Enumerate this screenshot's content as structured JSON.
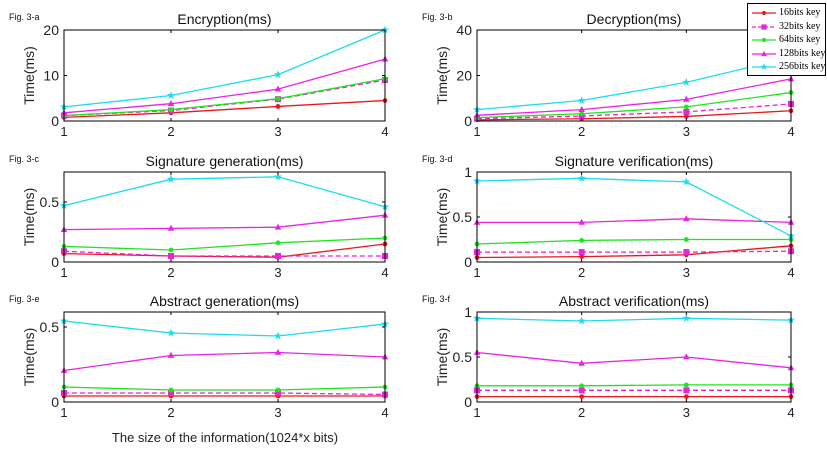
{
  "figure": {
    "xlabel": "The size of the information(1024*x bits)"
  },
  "legend": {
    "items": [
      {
        "label": "16bits key",
        "color": "#e8191c",
        "marker": "dot",
        "dashed": false
      },
      {
        "label": "32bits key",
        "color": "#e824d7",
        "marker": "square",
        "dashed": true
      },
      {
        "label": "64bits key",
        "color": "#1fe41f",
        "marker": "dot",
        "dashed": false
      },
      {
        "label": "128bits key",
        "color": "#e824e3",
        "marker": "triangle",
        "dashed": false
      },
      {
        "label": "256bits key",
        "color": "#1ddcf0",
        "marker": "star",
        "dashed": false
      }
    ]
  },
  "chart_data": [
    {
      "type": "line",
      "figure_label": "Fig. 3-a",
      "title": "Encryption(ms)",
      "ylabel": "Time(ms)",
      "xlabel": "",
      "x": [
        1,
        2,
        3,
        4
      ],
      "ylim": [
        0,
        20
      ],
      "yticks": [
        0,
        10,
        20
      ],
      "grid": false,
      "series": [
        {
          "name": "16bits key",
          "values": [
            0.8,
            1.8,
            3.2,
            4.5
          ]
        },
        {
          "name": "32bits key",
          "values": [
            1.2,
            2.3,
            4.8,
            9.0
          ]
        },
        {
          "name": "64bits key",
          "values": [
            1.2,
            2.5,
            4.9,
            9.3
          ]
        },
        {
          "name": "128bits key",
          "values": [
            1.8,
            3.8,
            7.0,
            13.6
          ]
        },
        {
          "name": "256bits key",
          "values": [
            3.1,
            5.6,
            10.2,
            20.0
          ]
        }
      ]
    },
    {
      "type": "line",
      "figure_label": "Fig. 3-b",
      "title": "Decryption(ms)",
      "ylabel": "Time(ms)",
      "xlabel": "",
      "x": [
        1,
        2,
        3,
        4
      ],
      "ylim": [
        0,
        40
      ],
      "yticks": [
        0,
        20,
        40
      ],
      "grid": false,
      "series": [
        {
          "name": "16bits key",
          "values": [
            0.5,
            1.0,
            2.0,
            4.5
          ]
        },
        {
          "name": "32bits key",
          "values": [
            1.0,
            2.2,
            4.0,
            7.5
          ]
        },
        {
          "name": "64bits key",
          "values": [
            1.5,
            3.2,
            6.2,
            12.5
          ]
        },
        {
          "name": "128bits key",
          "values": [
            2.5,
            5.0,
            9.5,
            18.5
          ]
        },
        {
          "name": "256bits key",
          "values": [
            5.0,
            9.0,
            17.0,
            28.0
          ]
        }
      ]
    },
    {
      "type": "line",
      "figure_label": "Fig. 3-c",
      "title": "Signature generation(ms)",
      "ylabel": "Time(ms)",
      "xlabel": "",
      "x": [
        1,
        2,
        3,
        4
      ],
      "ylim": [
        0,
        0.75
      ],
      "yticks": [
        0,
        0.5
      ],
      "grid": false,
      "series": [
        {
          "name": "16bits key",
          "values": [
            0.07,
            0.05,
            0.04,
            0.15
          ]
        },
        {
          "name": "32bits key",
          "values": [
            0.09,
            0.05,
            0.05,
            0.05
          ]
        },
        {
          "name": "64bits key",
          "values": [
            0.13,
            0.1,
            0.16,
            0.2
          ]
        },
        {
          "name": "128bits key",
          "values": [
            0.27,
            0.28,
            0.29,
            0.39
          ]
        },
        {
          "name": "256bits key",
          "values": [
            0.47,
            0.69,
            0.71,
            0.46
          ]
        }
      ]
    },
    {
      "type": "line",
      "figure_label": "Fig. 3-d",
      "title": "Signature verification(ms)",
      "ylabel": "Time(ms)",
      "xlabel": "",
      "x": [
        1,
        2,
        3,
        4
      ],
      "ylim": [
        0,
        1.0
      ],
      "yticks": [
        0,
        0.5,
        1
      ],
      "grid": false,
      "series": [
        {
          "name": "16bits key",
          "values": [
            0.05,
            0.06,
            0.08,
            0.18
          ]
        },
        {
          "name": "32bits key",
          "values": [
            0.11,
            0.11,
            0.11,
            0.12
          ]
        },
        {
          "name": "64bits key",
          "values": [
            0.2,
            0.24,
            0.25,
            0.25
          ]
        },
        {
          "name": "128bits key",
          "values": [
            0.44,
            0.44,
            0.48,
            0.44
          ]
        },
        {
          "name": "256bits key",
          "values": [
            0.9,
            0.93,
            0.89,
            0.29
          ]
        }
      ]
    },
    {
      "type": "line",
      "figure_label": "Fig. 3-e",
      "title": "Abstract generation(ms)",
      "ylabel": "Time(ms)",
      "xlabel": "",
      "x": [
        1,
        2,
        3,
        4
      ],
      "ylim": [
        0,
        0.6
      ],
      "yticks": [
        0,
        0.5
      ],
      "grid": false,
      "series": [
        {
          "name": "16bits key",
          "values": [
            0.04,
            0.04,
            0.04,
            0.04
          ]
        },
        {
          "name": "32bits key",
          "values": [
            0.06,
            0.06,
            0.06,
            0.05
          ]
        },
        {
          "name": "64bits key",
          "values": [
            0.1,
            0.08,
            0.08,
            0.1
          ]
        },
        {
          "name": "128bits key",
          "values": [
            0.21,
            0.31,
            0.33,
            0.3
          ]
        },
        {
          "name": "256bits key",
          "values": [
            0.54,
            0.46,
            0.44,
            0.52
          ]
        }
      ]
    },
    {
      "type": "line",
      "figure_label": "Fig. 3-f",
      "title": "Abstract verification(ms)",
      "ylabel": "Time(ms)",
      "xlabel": "",
      "x": [
        1,
        2,
        3,
        4
      ],
      "ylim": [
        0,
        1.0
      ],
      "yticks": [
        0,
        0.5,
        1
      ],
      "grid": false,
      "series": [
        {
          "name": "16bits key",
          "values": [
            0.06,
            0.06,
            0.06,
            0.06
          ]
        },
        {
          "name": "32bits key",
          "values": [
            0.13,
            0.13,
            0.13,
            0.13
          ]
        },
        {
          "name": "64bits key",
          "values": [
            0.18,
            0.18,
            0.19,
            0.19
          ]
        },
        {
          "name": "128bits key",
          "values": [
            0.55,
            0.43,
            0.5,
            0.38
          ]
        },
        {
          "name": "256bits key",
          "values": [
            0.93,
            0.9,
            0.93,
            0.91
          ]
        }
      ]
    }
  ]
}
